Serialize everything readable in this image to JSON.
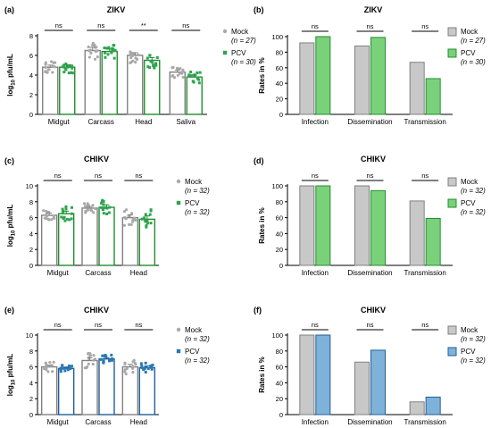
{
  "figure": {
    "colors": {
      "mock_fill": "#c8c8c8",
      "mock_edge": "#808080",
      "mock_point": "#a9a9a9",
      "pcv_green_fill": "#7ad17a",
      "pcv_green_edge": "#1f8f2f",
      "pcv_green_point": "#2ea44f",
      "pcv_blue_fill": "#7fb2d9",
      "pcv_blue_edge": "#1f5f99",
      "pcv_blue_point": "#2a79b5",
      "axis": "#000000"
    }
  },
  "chart_data": [
    {
      "panel": "(a)",
      "type": "bar",
      "title": "ZIKV",
      "ylabel_main": "log",
      "ylabel_sub": "10",
      "ylabel_rest": " pfu/mL",
      "categories": [
        "Midgut",
        "Carcass",
        "Head",
        "Saliva"
      ],
      "ylim": [
        0,
        8
      ],
      "yticks": [
        "0",
        "2",
        "4",
        "6",
        "8"
      ],
      "series": [
        {
          "name": "Mock",
          "n_label": "(n = 27)",
          "values": [
            4.8,
            6.5,
            6.0,
            4.3
          ],
          "spread": [
            0.6,
            0.9,
            0.8,
            0.6
          ]
        },
        {
          "name": "PCV",
          "n_label": "(n = 30)",
          "values": [
            4.8,
            6.4,
            5.5,
            3.8
          ],
          "spread": [
            0.6,
            0.7,
            0.8,
            0.6
          ]
        }
      ],
      "significance": [
        "ns",
        "ns",
        "**",
        "ns"
      ],
      "pcv_palette": "green"
    },
    {
      "panel": "(b)",
      "type": "bar",
      "title": "ZIKV",
      "ylabel": "Rates in %",
      "categories": [
        "Infection",
        "Dissemination",
        "Transmission"
      ],
      "ylim": [
        0,
        100
      ],
      "yticks": [
        "0",
        "20",
        "40",
        "60",
        "80",
        "100"
      ],
      "series": [
        {
          "name": "Mock",
          "n_label": "(n = 27)",
          "values": [
            92,
            88,
            67
          ]
        },
        {
          "name": "PCV",
          "n_label": "(n = 30)",
          "values": [
            100,
            99,
            46
          ]
        }
      ],
      "significance": [
        "ns",
        "ns",
        "ns"
      ],
      "pcv_palette": "green"
    },
    {
      "panel": "(c)",
      "type": "bar",
      "title": "CHIKV",
      "ylabel_main": "log",
      "ylabel_sub": "10",
      "ylabel_rest": " pfu/mL",
      "categories": [
        "Midgut",
        "Carcass",
        "Head"
      ],
      "ylim": [
        0,
        10
      ],
      "yticks": [
        "0",
        "2",
        "4",
        "6",
        "8",
        "10"
      ],
      "series": [
        {
          "name": "Mock",
          "n_label": "(n = 32)",
          "values": [
            6.3,
            7.2,
            6.0
          ],
          "spread": [
            0.8,
            0.6,
            1.0
          ]
        },
        {
          "name": "PCV",
          "n_label": "(n = 32)",
          "values": [
            6.5,
            7.3,
            5.8
          ],
          "spread": [
            0.9,
            0.9,
            1.2
          ]
        }
      ],
      "significance": [
        "ns",
        "ns",
        "ns"
      ],
      "pcv_palette": "green"
    },
    {
      "panel": "(d)",
      "type": "bar",
      "title": "CHIKV",
      "ylabel": "Rates in %",
      "categories": [
        "Infection",
        "Dissemination",
        "Transmission"
      ],
      "ylim": [
        0,
        100
      ],
      "yticks": [
        "0",
        "20",
        "40",
        "60",
        "80",
        "100"
      ],
      "series": [
        {
          "name": "Mock",
          "n_label": "(n = 32)",
          "values": [
            100,
            100,
            81
          ]
        },
        {
          "name": "PCV",
          "n_label": "(n = 32)",
          "values": [
            100,
            94,
            59
          ]
        }
      ],
      "significance": [
        "ns",
        "ns",
        "ns"
      ],
      "pcv_palette": "green"
    },
    {
      "panel": "(e)",
      "type": "bar",
      "title": "CHIKV",
      "ylabel_main": "log",
      "ylabel_sub": "10",
      "ylabel_rest": " pfu/mL",
      "categories": [
        "Midgut",
        "Carcass",
        "Head"
      ],
      "ylim": [
        0,
        10
      ],
      "yticks": [
        "0",
        "2",
        "4",
        "6",
        "8",
        "10"
      ],
      "series": [
        {
          "name": "Mock",
          "n_label": "(n = 32)",
          "values": [
            6.0,
            6.8,
            6.0
          ],
          "spread": [
            0.6,
            1.0,
            0.9
          ]
        },
        {
          "name": "PCV",
          "n_label": "(n = 32)",
          "values": [
            5.8,
            7.0,
            5.9
          ],
          "spread": [
            0.4,
            0.5,
            0.6
          ]
        }
      ],
      "significance": [
        "ns",
        "ns",
        "ns"
      ],
      "pcv_palette": "blue"
    },
    {
      "panel": "(f)",
      "type": "bar",
      "title": "CHIKV",
      "ylabel": "Rates in %",
      "categories": [
        "Infection",
        "Dissemination",
        "Transmission"
      ],
      "ylim": [
        0,
        100
      ],
      "yticks": [
        "0",
        "20",
        "40",
        "60",
        "80",
        "100"
      ],
      "series": [
        {
          "name": "Mock",
          "n_label": "(n = 32)",
          "values": [
            100,
            66,
            16
          ]
        },
        {
          "name": "PCV",
          "n_label": "(n = 32)",
          "values": [
            100,
            81,
            22
          ]
        }
      ],
      "significance": [
        "ns",
        "ns",
        "ns"
      ],
      "pcv_palette": "blue"
    }
  ]
}
